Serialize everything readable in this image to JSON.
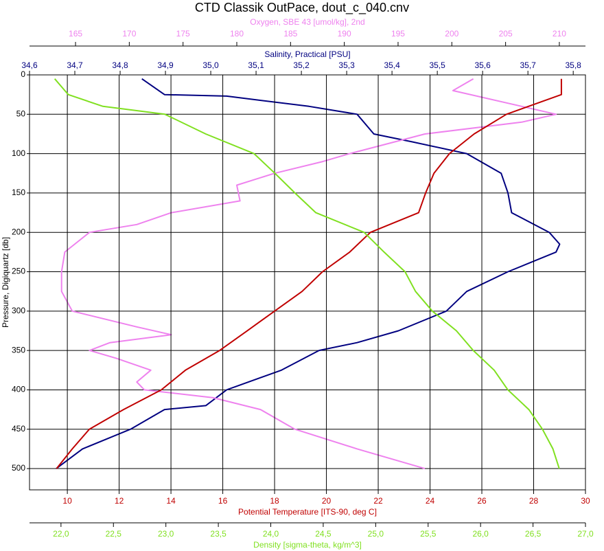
{
  "chart_data": {
    "type": "line",
    "title": "CTD Classik OutPace, dout_c_040.cnv",
    "y_label": "Pressure, Digiquartz [db]",
    "ylim": [
      0,
      527
    ],
    "yticks": [
      0,
      50,
      100,
      150,
      200,
      250,
      300,
      350,
      400,
      450,
      500
    ],
    "grid": true,
    "series": [
      {
        "name": "Salinity, Practical [PSU]",
        "color": "#000080",
        "position": "top",
        "xlim": [
          34.6,
          35.827
        ],
        "xticks": [
          {
            "value": 34.6,
            "label": "34,6"
          },
          {
            "value": 34.7,
            "label": "34,7"
          },
          {
            "value": 34.8,
            "label": "34,8"
          },
          {
            "value": 34.9,
            "label": "34,9"
          },
          {
            "value": 35.0,
            "label": "35,0"
          },
          {
            "value": 35.1,
            "label": "35,1"
          },
          {
            "value": 35.2,
            "label": "35,2"
          },
          {
            "value": 35.3,
            "label": "35,3"
          },
          {
            "value": 35.4,
            "label": "35,4"
          },
          {
            "value": 35.5,
            "label": "35,5"
          },
          {
            "value": 35.6,
            "label": "35,6"
          },
          {
            "value": 35.7,
            "label": "35,7"
          },
          {
            "value": 35.8,
            "label": "35,8"
          }
        ],
        "pressure": [
          5,
          25,
          27,
          40,
          50,
          75,
          85,
          100,
          125,
          150,
          175,
          200,
          215,
          225,
          250,
          275,
          300,
          325,
          340,
          350,
          375,
          400,
          420,
          425,
          450,
          475,
          500
        ],
        "values": [
          34.848,
          34.898,
          35.035,
          35.217,
          35.323,
          35.36,
          35.444,
          35.565,
          35.641,
          35.656,
          35.664,
          35.747,
          35.77,
          35.762,
          35.656,
          35.565,
          35.52,
          35.414,
          35.323,
          35.239,
          35.156,
          35.035,
          34.989,
          34.898,
          34.823,
          34.717,
          34.659
        ]
      },
      {
        "name": "Oxygen, SBE 43 [umol/kg], 2nd",
        "color": "#ee82ee",
        "position": "top",
        "xlim": [
          160.72,
          212.43
        ],
        "xticks": [
          165,
          170,
          175,
          180,
          185,
          190,
          195,
          200,
          205,
          210
        ],
        "pressure": [
          5,
          20,
          40,
          50,
          60,
          75,
          100,
          110,
          125,
          140,
          160,
          175,
          190,
          200,
          225,
          250,
          275,
          300,
          320,
          330,
          340,
          350,
          360,
          375,
          390,
          400,
          410,
          425,
          450,
          475,
          500
        ],
        "values": [
          202.0,
          200.1,
          206.5,
          209.7,
          206.5,
          197.5,
          190.5,
          188.0,
          183.5,
          180.0,
          180.3,
          173.9,
          170.7,
          166.3,
          164.0,
          163.7,
          163.7,
          164.7,
          170.7,
          173.9,
          168.2,
          166.3,
          168.8,
          172.0,
          170.7,
          171.4,
          177.8,
          182.2,
          185.4,
          191.2,
          197.5
        ]
      },
      {
        "name": "Potential Temperature [ITS-90, deg C]",
        "color": "#c00000",
        "position": "bottom",
        "xlim": [
          8.54,
          30
        ],
        "xticks": [
          10,
          12,
          14,
          16,
          18,
          20,
          22,
          24,
          26,
          28,
          30
        ],
        "pressure": [
          5,
          25,
          40,
          50,
          75,
          100,
          125,
          150,
          175,
          200,
          225,
          250,
          275,
          300,
          325,
          350,
          375,
          400,
          425,
          450,
          475,
          500
        ],
        "values": [
          29.07,
          29.07,
          27.8,
          26.95,
          25.7,
          24.75,
          24.15,
          23.83,
          23.56,
          21.7,
          20.9,
          19.85,
          19.06,
          18.0,
          16.94,
          15.88,
          14.56,
          13.63,
          12.17,
          10.85,
          10.19,
          9.58
        ]
      },
      {
        "name": "Density [sigma-theta, kg/m^3]",
        "color": "#80e020",
        "position": "bottom",
        "xlim": [
          21.7,
          27.0
        ],
        "xticks": [
          {
            "value": 22.0,
            "label": "22,0"
          },
          {
            "value": 22.5,
            "label": "22,5"
          },
          {
            "value": 23.0,
            "label": "23,0"
          },
          {
            "value": 23.5,
            "label": "23,5"
          },
          {
            "value": 24.0,
            "label": "24,0"
          },
          {
            "value": 24.5,
            "label": "24,5"
          },
          {
            "value": 25.0,
            "label": "25,0"
          },
          {
            "value": 25.5,
            "label": "25,5"
          },
          {
            "value": 26.0,
            "label": "26,0"
          },
          {
            "value": 26.5,
            "label": "26,5"
          },
          {
            "value": 27.0,
            "label": "27,0"
          }
        ],
        "pressure": [
          5,
          25,
          40,
          50,
          75,
          100,
          125,
          150,
          175,
          200,
          225,
          250,
          275,
          300,
          325,
          350,
          375,
          400,
          425,
          450,
          475,
          500
        ],
        "values": [
          21.94,
          22.07,
          22.4,
          22.99,
          23.38,
          23.84,
          24.04,
          24.23,
          24.43,
          24.89,
          25.08,
          25.28,
          25.38,
          25.54,
          25.77,
          25.93,
          26.13,
          26.26,
          26.46,
          26.59,
          26.69,
          26.75
        ]
      }
    ]
  }
}
